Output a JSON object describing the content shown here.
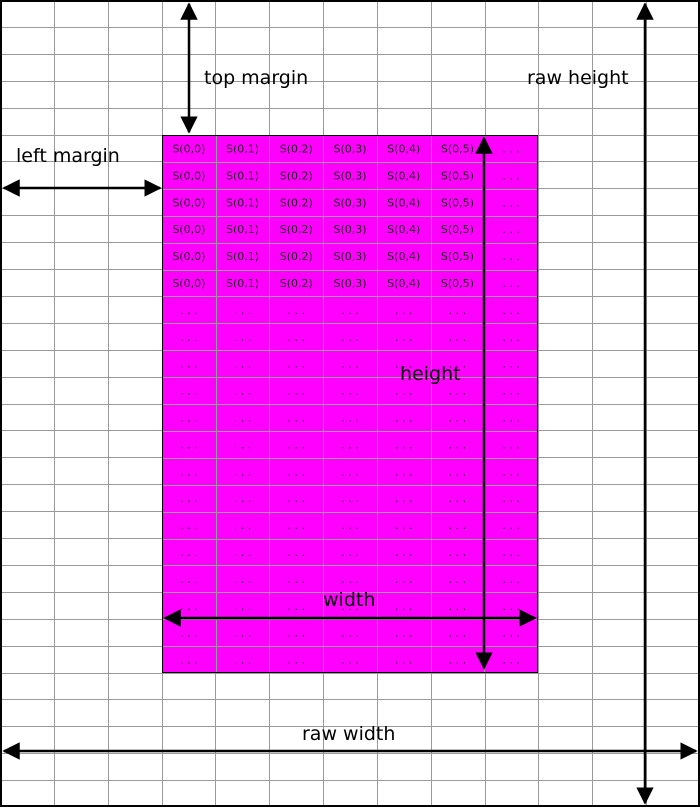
{
  "colors": {
    "background": "#ffffff",
    "grid_line": "#9a9a9a",
    "sensor_fill": "#ff00ff",
    "border": "#000000",
    "arrow": "#000000"
  },
  "labels": {
    "top_margin": "top margin",
    "left_margin": "left margin",
    "raw_height": "raw height",
    "height": "height",
    "width": "width",
    "raw_width": "raw width"
  },
  "sensor": {
    "rows": [
      [
        "S(0,0)",
        "S(0,1)",
        "S(0,2)",
        "S(0,3)",
        "S(0,4)",
        "S(0,5)",
        ". . ."
      ],
      [
        "S(0,0)",
        "S(0,1)",
        "S(0,2)",
        "S(0,3)",
        "S(0,4)",
        "S(0,5)",
        ". . ."
      ],
      [
        "S(0,0)",
        "S(0,1)",
        "S(0,2)",
        "S(0,3)",
        "S(0,4)",
        "S(0,5)",
        ". . ."
      ],
      [
        "S(0,0)",
        "S(0,1)",
        "S(0,2)",
        "S(0,3)",
        "S(0,4)",
        "S(0,5)",
        ". . ."
      ],
      [
        "S(0,0)",
        "S(0,1)",
        "S(0,2)",
        "S(0,3)",
        "S(0,4)",
        "S(0,5)",
        ". . ."
      ],
      [
        "S(0,0)",
        "S(0,1)",
        "S(0,2)",
        "S(0,3)",
        "S(0,4)",
        "S(0,5)",
        ". . ."
      ],
      [
        ". . .",
        ". . .",
        ". . .",
        ". . .",
        ". . .",
        ". . .",
        ". . ."
      ],
      [
        ". . .",
        ". . .",
        ". . .",
        ". . .",
        ". . .",
        ". . .",
        ". . ."
      ],
      [
        ". . .",
        ". . .",
        ". . .",
        ". . .",
        ". . .",
        ". . .",
        ". . ."
      ],
      [
        ". . .",
        ". . .",
        ". . .",
        ". . .",
        ". . .",
        ". . .",
        ". . ."
      ],
      [
        ". . .",
        ". . .",
        ". . .",
        ". . .",
        ". . .",
        ". . .",
        ". . ."
      ],
      [
        ". . .",
        ". . .",
        ". . .",
        ". . .",
        ". . .",
        ". . .",
        ". . ."
      ],
      [
        ". . .",
        ". . .",
        ". . .",
        ". . .",
        ". . .",
        ". . .",
        ". . ."
      ],
      [
        ". . .",
        ". . .",
        ". . .",
        ". . .",
        ". . .",
        ". . .",
        ". . ."
      ],
      [
        ". . .",
        ". . .",
        ". . .",
        ". . .",
        ". . .",
        ". . .",
        ". . ."
      ],
      [
        ". . .",
        ". . .",
        ". . .",
        ". . .",
        ". . .",
        ". . .",
        ". . ."
      ],
      [
        ". . .",
        ". . .",
        ". . .",
        ". . .",
        ". . .",
        ". . .",
        ". . ."
      ],
      [
        ". . .",
        ". . .",
        ". . .",
        ". . .",
        ". . .",
        ". . .",
        ". . ."
      ],
      [
        ". . .",
        ". . .",
        ". . .",
        ". . .",
        ". . .",
        ". . .",
        ". . ."
      ],
      [
        ". . .",
        ". . .",
        ". . .",
        ". . .",
        ". . .",
        ". . .",
        ". . ."
      ]
    ]
  }
}
